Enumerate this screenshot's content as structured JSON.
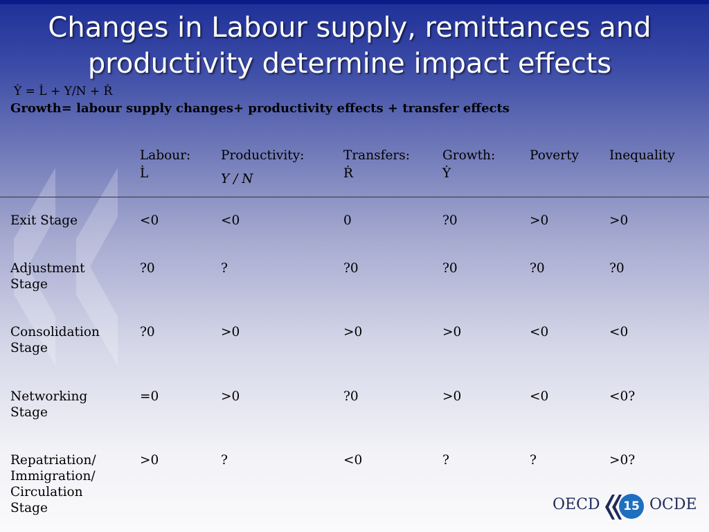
{
  "slide": {
    "title_line1": "Changes in Labour supply, remittances and",
    "title_line2": "productivity determine impact effects",
    "equation": "Ẏ = L̇ + Y/N + Ṙ",
    "growth_line": "Growth= labour supply changes+ productivity effects +  transfer effects",
    "page_number": "15"
  },
  "table": {
    "headers": [
      {
        "label": "Labour:",
        "symbol": "L̇"
      },
      {
        "label": "Productivity:",
        "symbol": "Y / N"
      },
      {
        "label": "Transfers:",
        "symbol": "Ṙ"
      },
      {
        "label": "Growth:",
        "symbol": "Ẏ"
      },
      {
        "label": "Poverty",
        "symbol": ""
      },
      {
        "label": "Inequality",
        "symbol": ""
      }
    ],
    "rows": [
      {
        "stage": [
          "Exit Stage"
        ],
        "values": [
          "<0",
          "<0",
          "0",
          "?0",
          ">0",
          ">0"
        ]
      },
      {
        "stage": [
          "Adjustment",
          "Stage"
        ],
        "values": [
          "?0",
          "?",
          "?0",
          "?0",
          "?0",
          "?0"
        ]
      },
      {
        "stage": [
          "Consolidation",
          "Stage"
        ],
        "values": [
          "?0",
          ">0",
          ">0",
          ">0",
          "<0",
          "<0"
        ]
      },
      {
        "stage": [
          "Networking",
          "Stage"
        ],
        "values": [
          "=0",
          ">0",
          "?0",
          ">0",
          "<0",
          "<0?"
        ]
      },
      {
        "stage": [
          "Repatriation/",
          "Immigration/",
          "Circulation",
          "Stage"
        ],
        "values": [
          ">0",
          "?",
          "<0",
          "?",
          "?",
          ">0?"
        ]
      }
    ]
  },
  "logo": {
    "left_text": "OECD",
    "right_text": "OCDE"
  },
  "colors": {
    "title": "#ffffff",
    "bar": "#0d1a8a",
    "badge": "#1f6fc0"
  }
}
